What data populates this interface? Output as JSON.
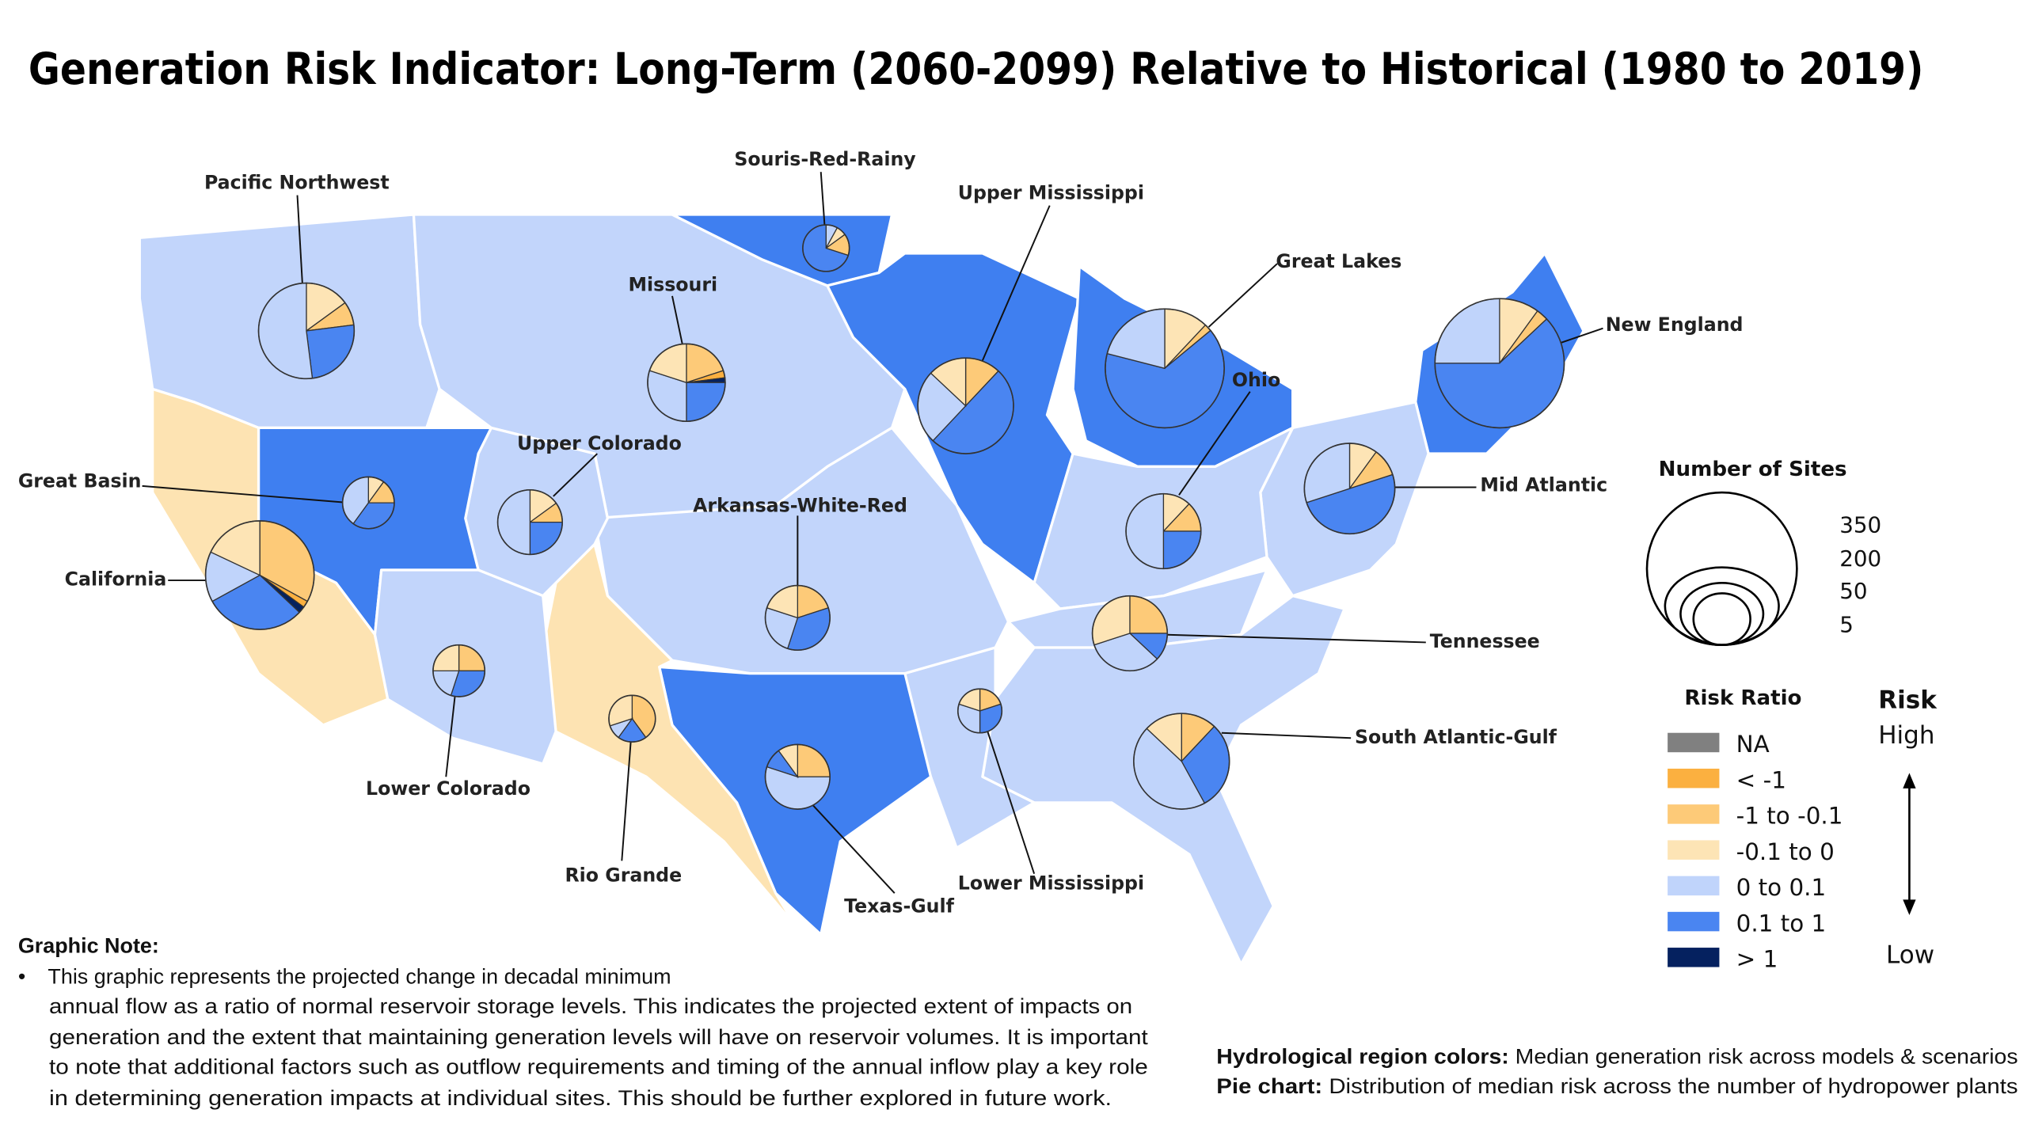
{
  "title": "Generation Risk Indicator: Long-Term (2060-2099) Relative to Historical (1980 to 2019)",
  "colors": {
    "NA": "#808080",
    "lt_m1": "#fbb040",
    "m1_m01": "#fdca78",
    "m01_0": "#fde4b5",
    "0_01": "#c0d4fb",
    "01_1": "#4a85f1",
    "gt_1": "#05215f",
    "pie_stroke": "#333333"
  },
  "categories": [
    "NA",
    "lt_m1",
    "m1_m01",
    "m01_0",
    "0_01",
    "01_1",
    "gt_1"
  ],
  "regions": [
    {
      "id": "pacific-northwest",
      "name": "Pacific Northwest",
      "risk": "0_01",
      "sites": 200,
      "pie": {
        "m01_0": 0.15,
        "m1_m01": 0.08,
        "01_1": 0.25,
        "0_01": 0.52
      }
    },
    {
      "id": "souris-red-rainy",
      "name": "Souris-Red-Rainy",
      "risk": "01_1",
      "sites": 15,
      "pie": {
        "0_01": 0.08,
        "m01_0": 0.07,
        "m1_m01": 0.15,
        "01_1": 0.7
      }
    },
    {
      "id": "missouri",
      "name": "Missouri",
      "risk": "0_01",
      "sites": 120,
      "pie": {
        "m1_m01": 0.2,
        "lt_m1": 0.03,
        "gt_1": 0.02,
        "01_1": 0.25,
        "0_01": 0.3,
        "m01_0": 0.2
      }
    },
    {
      "id": "upper-mississippi",
      "name": "Upper Mississippi",
      "risk": "01_1",
      "sites": 200,
      "pie": {
        "m1_m01": 0.12,
        "01_1": 0.5,
        "0_01": 0.25,
        "m01_0": 0.13
      }
    },
    {
      "id": "great-lakes",
      "name": "Great Lakes",
      "risk": "01_1",
      "sites": 300,
      "pie": {
        "m01_0": 0.12,
        "m1_m01": 0.02,
        "01_1": 0.65,
        "0_01": 0.21
      }
    },
    {
      "id": "new-england",
      "name": "New England",
      "risk": "01_1",
      "sites": 350,
      "pie": {
        "m01_0": 0.1,
        "m1_m01": 0.03,
        "01_1": 0.62,
        "0_01": 0.25
      }
    },
    {
      "id": "ohio",
      "name": "Ohio",
      "risk": "0_01",
      "sites": 110,
      "pie": {
        "m01_0": 0.12,
        "m1_m01": 0.13,
        "01_1": 0.25,
        "0_01": 0.5
      }
    },
    {
      "id": "mid-atlantic",
      "name": "Mid Atlantic",
      "risk": "0_01",
      "sites": 170,
      "pie": {
        "m01_0": 0.1,
        "m1_m01": 0.1,
        "01_1": 0.5,
        "0_01": 0.3
      }
    },
    {
      "id": "great-basin",
      "name": "Great Basin",
      "risk": "01_1",
      "sites": 30,
      "pie": {
        "m01_0": 0.1,
        "m1_m01": 0.15,
        "01_1": 0.35,
        "0_01": 0.4
      }
    },
    {
      "id": "upper-colorado",
      "name": "Upper Colorado",
      "risk": "0_01",
      "sites": 70,
      "pie": {
        "m01_0": 0.15,
        "m1_m01": 0.1,
        "01_1": 0.25,
        "0_01": 0.5
      }
    },
    {
      "id": "california",
      "name": "California",
      "risk": "m01_0",
      "sites": 250,
      "pie": {
        "m1_m01": 0.33,
        "lt_m1": 0.02,
        "gt_1": 0.02,
        "01_1": 0.3,
        "0_01": 0.15,
        "m01_0": 0.18
      }
    },
    {
      "id": "arkansas-white-red",
      "name": "Arkansas-White-Red",
      "risk": "0_01",
      "sites": 70,
      "pie": {
        "m1_m01": 0.2,
        "01_1": 0.35,
        "0_01": 0.25,
        "m01_0": 0.2
      }
    },
    {
      "id": "tennessee",
      "name": "Tennessee",
      "risk": "0_01",
      "sites": 110,
      "pie": {
        "m1_m01": 0.25,
        "01_1": 0.12,
        "0_01": 0.33,
        "m01_0": 0.3
      }
    },
    {
      "id": "lower-colorado",
      "name": "Lower Colorado",
      "risk": "0_01",
      "sites": 30,
      "pie": {
        "m1_m01": 0.25,
        "01_1": 0.3,
        "0_01": 0.2,
        "m01_0": 0.25
      }
    },
    {
      "id": "rio-grande",
      "name": "Rio Grande",
      "risk": "m01_0",
      "sites": 25,
      "pie": {
        "m1_m01": 0.4,
        "01_1": 0.2,
        "0_01": 0.1,
        "m01_0": 0.3
      }
    },
    {
      "id": "texas-gulf",
      "name": "Texas-Gulf",
      "risk": "01_1",
      "sites": 70,
      "pie": {
        "m1_m01": 0.25,
        "0_01": 0.55,
        "01_1": 0.1,
        "m01_0": 0.1
      }
    },
    {
      "id": "lower-mississippi",
      "name": "Lower Mississippi",
      "risk": "0_01",
      "sites": 20,
      "pie": {
        "m1_m01": 0.2,
        "01_1": 0.3,
        "0_01": 0.3,
        "m01_0": 0.2
      }
    },
    {
      "id": "south-atlantic-gulf",
      "name": "South Atlantic-Gulf",
      "risk": "0_01",
      "sites": 200,
      "pie": {
        "m1_m01": 0.12,
        "01_1": 0.3,
        "0_01": 0.45,
        "m01_0": 0.13
      }
    }
  ],
  "size_legend": {
    "title": "Number of Sites",
    "values": [
      "350",
      "200",
      "50",
      "5"
    ]
  },
  "risk_legend": {
    "title": "Risk Ratio",
    "items": [
      {
        "key": "NA",
        "label": "NA"
      },
      {
        "key": "lt_m1",
        "label": "< -1"
      },
      {
        "key": "m1_m01",
        "label": "-1 to -0.1"
      },
      {
        "key": "m01_0",
        "label": "-0.1 to 0"
      },
      {
        "key": "0_01",
        "label": "0 to 0.1"
      },
      {
        "key": "01_1",
        "label": "0.1 to 1"
      },
      {
        "key": "gt_1",
        "label": "> 1"
      }
    ],
    "risk_title": "Risk",
    "high": "High",
    "low": "Low"
  },
  "note": {
    "title": "Graphic Note:",
    "bullet": "•",
    "lines": [
      "This graphic represents the projected change in decadal minimum",
      "annual flow as a ratio of normal reservoir storage levels. This indicates the projected extent of impacts on",
      "generation and the extent that maintaining generation levels will have on reservoir volumes. It is important",
      "to note that additional factors such as outflow requirements and timing of the annual inflow play a key role",
      "in determining generation impacts at individual sites. This should be further explored in future work."
    ]
  },
  "footer": {
    "region_label": "Hydrological region colors:",
    "region_text": " Median generation risk across models & scenarios",
    "pie_label": "Pie chart:",
    "pie_text": " Distribution of median risk across the number of hydropower plants"
  }
}
